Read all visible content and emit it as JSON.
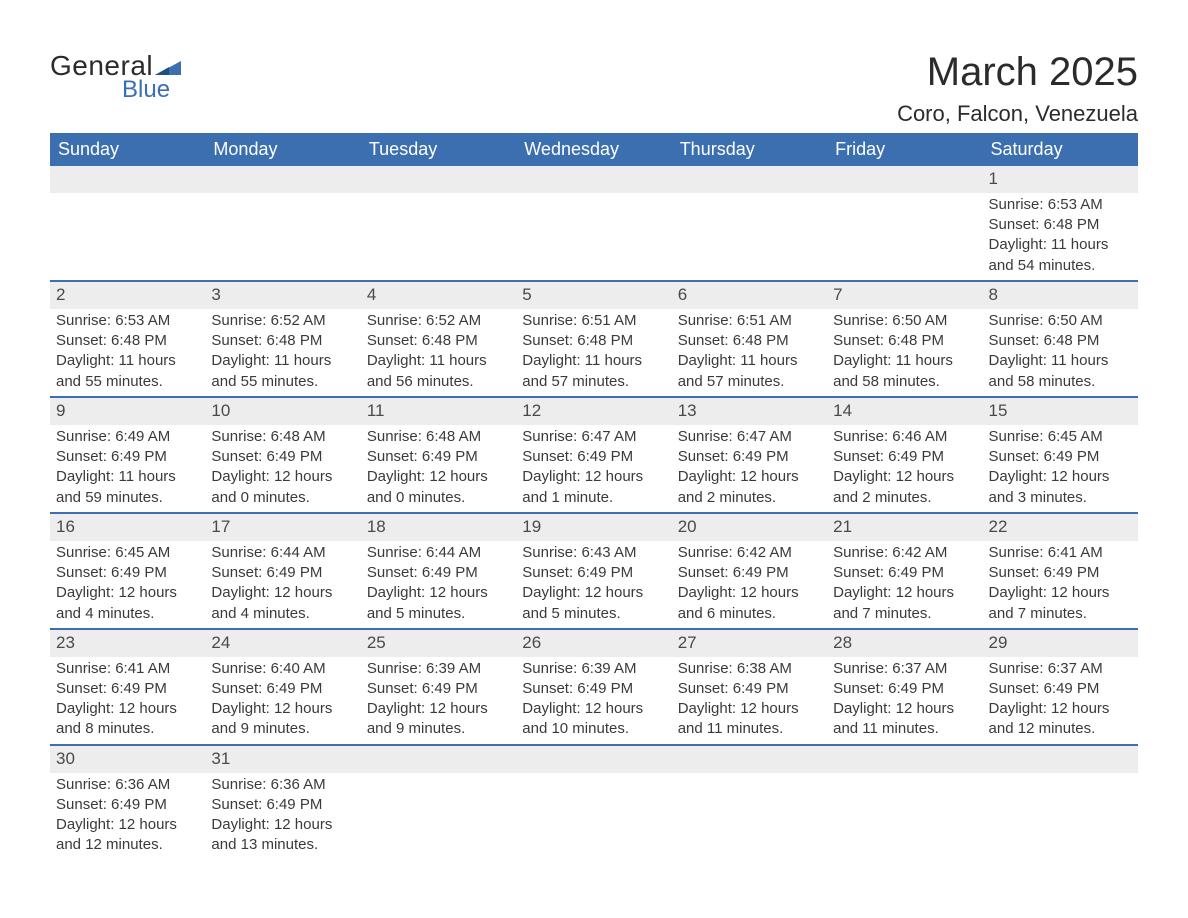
{
  "logo": {
    "main": "General",
    "sub": "Blue",
    "accent_color": "#3b6fb0"
  },
  "title": "March 2025",
  "location": "Coro, Falcon, Venezuela",
  "colors": {
    "header_bg": "#3b6fb0",
    "header_text": "#ffffff",
    "row_divider": "#3b6fb0",
    "daynum_bg": "#ededed",
    "body_text": "#3a3a3a",
    "page_bg": "#ffffff"
  },
  "typography": {
    "title_fontsize": 40,
    "location_fontsize": 22,
    "header_fontsize": 18,
    "daynum_fontsize": 17,
    "cell_fontsize": 15,
    "font_family": "Arial"
  },
  "columns": [
    "Sunday",
    "Monday",
    "Tuesday",
    "Wednesday",
    "Thursday",
    "Friday",
    "Saturday"
  ],
  "weeks": [
    [
      null,
      null,
      null,
      null,
      null,
      null,
      {
        "day": "1",
        "sunrise": "Sunrise: 6:53 AM",
        "sunset": "Sunset: 6:48 PM",
        "dl1": "Daylight: 11 hours",
        "dl2": "and 54 minutes."
      }
    ],
    [
      {
        "day": "2",
        "sunrise": "Sunrise: 6:53 AM",
        "sunset": "Sunset: 6:48 PM",
        "dl1": "Daylight: 11 hours",
        "dl2": "and 55 minutes."
      },
      {
        "day": "3",
        "sunrise": "Sunrise: 6:52 AM",
        "sunset": "Sunset: 6:48 PM",
        "dl1": "Daylight: 11 hours",
        "dl2": "and 55 minutes."
      },
      {
        "day": "4",
        "sunrise": "Sunrise: 6:52 AM",
        "sunset": "Sunset: 6:48 PM",
        "dl1": "Daylight: 11 hours",
        "dl2": "and 56 minutes."
      },
      {
        "day": "5",
        "sunrise": "Sunrise: 6:51 AM",
        "sunset": "Sunset: 6:48 PM",
        "dl1": "Daylight: 11 hours",
        "dl2": "and 57 minutes."
      },
      {
        "day": "6",
        "sunrise": "Sunrise: 6:51 AM",
        "sunset": "Sunset: 6:48 PM",
        "dl1": "Daylight: 11 hours",
        "dl2": "and 57 minutes."
      },
      {
        "day": "7",
        "sunrise": "Sunrise: 6:50 AM",
        "sunset": "Sunset: 6:48 PM",
        "dl1": "Daylight: 11 hours",
        "dl2": "and 58 minutes."
      },
      {
        "day": "8",
        "sunrise": "Sunrise: 6:50 AM",
        "sunset": "Sunset: 6:48 PM",
        "dl1": "Daylight: 11 hours",
        "dl2": "and 58 minutes."
      }
    ],
    [
      {
        "day": "9",
        "sunrise": "Sunrise: 6:49 AM",
        "sunset": "Sunset: 6:49 PM",
        "dl1": "Daylight: 11 hours",
        "dl2": "and 59 minutes."
      },
      {
        "day": "10",
        "sunrise": "Sunrise: 6:48 AM",
        "sunset": "Sunset: 6:49 PM",
        "dl1": "Daylight: 12 hours",
        "dl2": "and 0 minutes."
      },
      {
        "day": "11",
        "sunrise": "Sunrise: 6:48 AM",
        "sunset": "Sunset: 6:49 PM",
        "dl1": "Daylight: 12 hours",
        "dl2": "and 0 minutes."
      },
      {
        "day": "12",
        "sunrise": "Sunrise: 6:47 AM",
        "sunset": "Sunset: 6:49 PM",
        "dl1": "Daylight: 12 hours",
        "dl2": "and 1 minute."
      },
      {
        "day": "13",
        "sunrise": "Sunrise: 6:47 AM",
        "sunset": "Sunset: 6:49 PM",
        "dl1": "Daylight: 12 hours",
        "dl2": "and 2 minutes."
      },
      {
        "day": "14",
        "sunrise": "Sunrise: 6:46 AM",
        "sunset": "Sunset: 6:49 PM",
        "dl1": "Daylight: 12 hours",
        "dl2": "and 2 minutes."
      },
      {
        "day": "15",
        "sunrise": "Sunrise: 6:45 AM",
        "sunset": "Sunset: 6:49 PM",
        "dl1": "Daylight: 12 hours",
        "dl2": "and 3 minutes."
      }
    ],
    [
      {
        "day": "16",
        "sunrise": "Sunrise: 6:45 AM",
        "sunset": "Sunset: 6:49 PM",
        "dl1": "Daylight: 12 hours",
        "dl2": "and 4 minutes."
      },
      {
        "day": "17",
        "sunrise": "Sunrise: 6:44 AM",
        "sunset": "Sunset: 6:49 PM",
        "dl1": "Daylight: 12 hours",
        "dl2": "and 4 minutes."
      },
      {
        "day": "18",
        "sunrise": "Sunrise: 6:44 AM",
        "sunset": "Sunset: 6:49 PM",
        "dl1": "Daylight: 12 hours",
        "dl2": "and 5 minutes."
      },
      {
        "day": "19",
        "sunrise": "Sunrise: 6:43 AM",
        "sunset": "Sunset: 6:49 PM",
        "dl1": "Daylight: 12 hours",
        "dl2": "and 5 minutes."
      },
      {
        "day": "20",
        "sunrise": "Sunrise: 6:42 AM",
        "sunset": "Sunset: 6:49 PM",
        "dl1": "Daylight: 12 hours",
        "dl2": "and 6 minutes."
      },
      {
        "day": "21",
        "sunrise": "Sunrise: 6:42 AM",
        "sunset": "Sunset: 6:49 PM",
        "dl1": "Daylight: 12 hours",
        "dl2": "and 7 minutes."
      },
      {
        "day": "22",
        "sunrise": "Sunrise: 6:41 AM",
        "sunset": "Sunset: 6:49 PM",
        "dl1": "Daylight: 12 hours",
        "dl2": "and 7 minutes."
      }
    ],
    [
      {
        "day": "23",
        "sunrise": "Sunrise: 6:41 AM",
        "sunset": "Sunset: 6:49 PM",
        "dl1": "Daylight: 12 hours",
        "dl2": "and 8 minutes."
      },
      {
        "day": "24",
        "sunrise": "Sunrise: 6:40 AM",
        "sunset": "Sunset: 6:49 PM",
        "dl1": "Daylight: 12 hours",
        "dl2": "and 9 minutes."
      },
      {
        "day": "25",
        "sunrise": "Sunrise: 6:39 AM",
        "sunset": "Sunset: 6:49 PM",
        "dl1": "Daylight: 12 hours",
        "dl2": "and 9 minutes."
      },
      {
        "day": "26",
        "sunrise": "Sunrise: 6:39 AM",
        "sunset": "Sunset: 6:49 PM",
        "dl1": "Daylight: 12 hours",
        "dl2": "and 10 minutes."
      },
      {
        "day": "27",
        "sunrise": "Sunrise: 6:38 AM",
        "sunset": "Sunset: 6:49 PM",
        "dl1": "Daylight: 12 hours",
        "dl2": "and 11 minutes."
      },
      {
        "day": "28",
        "sunrise": "Sunrise: 6:37 AM",
        "sunset": "Sunset: 6:49 PM",
        "dl1": "Daylight: 12 hours",
        "dl2": "and 11 minutes."
      },
      {
        "day": "29",
        "sunrise": "Sunrise: 6:37 AM",
        "sunset": "Sunset: 6:49 PM",
        "dl1": "Daylight: 12 hours",
        "dl2": "and 12 minutes."
      }
    ],
    [
      {
        "day": "30",
        "sunrise": "Sunrise: 6:36 AM",
        "sunset": "Sunset: 6:49 PM",
        "dl1": "Daylight: 12 hours",
        "dl2": "and 12 minutes."
      },
      {
        "day": "31",
        "sunrise": "Sunrise: 6:36 AM",
        "sunset": "Sunset: 6:49 PM",
        "dl1": "Daylight: 12 hours",
        "dl2": "and 13 minutes."
      },
      null,
      null,
      null,
      null,
      null
    ]
  ]
}
